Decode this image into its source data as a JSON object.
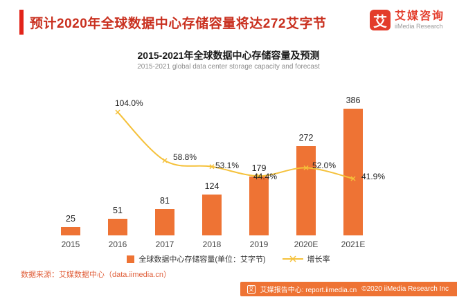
{
  "theme": {
    "accent_red": "#E2241A",
    "title_red": "#C9301F",
    "logo_red": "#E33C2B",
    "bar_orange": "#EE7334",
    "line_yellow": "#F5C13A",
    "source_orange": "#E0603C",
    "text_gray": "#8C8C8C"
  },
  "header": {
    "title": "预计2020年全球数据中心存储容量将达272艾字节",
    "logo": {
      "symbol": "艾",
      "name_cn": "艾媒咨询",
      "name_en": "iiMedia Research"
    }
  },
  "chart": {
    "title": "2015-2021年全球数据中心存储容量及预测",
    "subtitle": "2015-2021 global data center storage capacity and forecast",
    "legend": [
      {
        "label": "全球数据中心存储容量(单位：艾字节)",
        "type": "bar",
        "color": "#EE7334"
      },
      {
        "label": "增长率",
        "type": "line",
        "color": "#F5C13A"
      }
    ]
  },
  "chart_data": {
    "type": "bar",
    "categories": [
      "2015",
      "2016",
      "2017",
      "2018",
      "2019",
      "2020E",
      "2021E"
    ],
    "series": [
      {
        "name": "全球数据中心存储容量(单位：艾字节)",
        "type": "bar",
        "values": [
          25,
          51,
          81,
          124,
          179,
          272,
          386
        ]
      },
      {
        "name": "增长率",
        "type": "line",
        "values": [
          null,
          104.0,
          58.8,
          53.1,
          44.4,
          52.0,
          41.9
        ],
        "labels": [
          "",
          "104.0%",
          "58.8%",
          "53.1%",
          "44.4%",
          "52.0%",
          "41.9%"
        ]
      }
    ],
    "title": "2015-2021年全球数据中心存储容量及预测",
    "xlabel": "",
    "ylabel": "",
    "grid": false,
    "legend_position": "bottom"
  },
  "footer": {
    "source": "数据来源：艾媒数据中心（data.iimedia.cn）",
    "logo_glyph": "艾",
    "report_center": "艾媒报告中心: report.iimedia.cn",
    "copyright": "©2020  iiMedia Research Inc"
  }
}
